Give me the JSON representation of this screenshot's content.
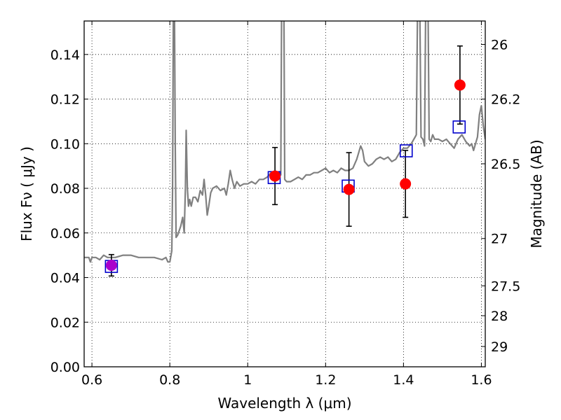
{
  "chart_data": {
    "type": "scatter",
    "xlabel": "Wavelength  λ (μm)",
    "ylabel": "Flux  Fν ( μJy )",
    "ylabel_right": "Magnitude (AB)",
    "xlim": [
      0.58,
      1.61
    ],
    "ylim": [
      0.0,
      0.155
    ],
    "grid": true,
    "x_ticks": [
      {
        "value": 0.6,
        "label": "0.6"
      },
      {
        "value": 0.8,
        "label": "0.8"
      },
      {
        "value": 1.0,
        "label": "1"
      },
      {
        "value": 1.2,
        "label": "1.2"
      },
      {
        "value": 1.4,
        "label": "1.4"
      },
      {
        "value": 1.6,
        "label": "1.6"
      }
    ],
    "y_ticks": [
      {
        "value": 0.0,
        "label": "0.00"
      },
      {
        "value": 0.02,
        "label": "0.02"
      },
      {
        "value": 0.04,
        "label": "0.04"
      },
      {
        "value": 0.06,
        "label": "0.06"
      },
      {
        "value": 0.08,
        "label": "0.08"
      },
      {
        "value": 0.1,
        "label": "0.10"
      },
      {
        "value": 0.12,
        "label": "0.12"
      },
      {
        "value": 0.14,
        "label": "0.14"
      }
    ],
    "right_ticks": [
      {
        "flux": 0.1445,
        "label": "26"
      },
      {
        "flux": 0.12,
        "label": "26.2"
      },
      {
        "flux": 0.091,
        "label": "26.5"
      },
      {
        "flux": 0.0575,
        "label": "27"
      },
      {
        "flux": 0.0363,
        "label": "27.5"
      },
      {
        "flux": 0.0229,
        "label": "28"
      },
      {
        "flux": 0.0091,
        "label": "29"
      }
    ],
    "colors": {
      "model": "#808080",
      "observed": "#ff0000",
      "synthetic": "#0000cc",
      "first_point": "#aa00cc",
      "errorbar": "#000000"
    },
    "model_spectrum": [
      [
        0.58,
        0.049
      ],
      [
        0.592,
        0.049
      ],
      [
        0.596,
        0.047
      ],
      [
        0.6,
        0.049
      ],
      [
        0.61,
        0.049
      ],
      [
        0.62,
        0.048
      ],
      [
        0.63,
        0.05
      ],
      [
        0.64,
        0.049
      ],
      [
        0.66,
        0.049
      ],
      [
        0.68,
        0.05
      ],
      [
        0.7,
        0.05
      ],
      [
        0.72,
        0.049
      ],
      [
        0.74,
        0.049
      ],
      [
        0.76,
        0.049
      ],
      [
        0.78,
        0.048
      ],
      [
        0.79,
        0.049
      ],
      [
        0.795,
        0.047
      ],
      [
        0.8,
        0.047
      ],
      [
        0.805,
        0.052
      ],
      [
        0.807,
        0.08
      ],
      [
        0.809,
        0.16
      ],
      [
        0.812,
        0.16
      ],
      [
        0.814,
        0.1
      ],
      [
        0.816,
        0.058
      ],
      [
        0.82,
        0.059
      ],
      [
        0.828,
        0.063
      ],
      [
        0.833,
        0.067
      ],
      [
        0.837,
        0.06
      ],
      [
        0.84,
        0.08
      ],
      [
        0.842,
        0.106
      ],
      [
        0.845,
        0.08
      ],
      [
        0.848,
        0.072
      ],
      [
        0.851,
        0.075
      ],
      [
        0.855,
        0.072
      ],
      [
        0.86,
        0.076
      ],
      [
        0.866,
        0.076
      ],
      [
        0.872,
        0.074
      ],
      [
        0.878,
        0.079
      ],
      [
        0.884,
        0.077
      ],
      [
        0.888,
        0.084
      ],
      [
        0.892,
        0.077
      ],
      [
        0.896,
        0.068
      ],
      [
        0.9,
        0.072
      ],
      [
        0.905,
        0.078
      ],
      [
        0.91,
        0.08
      ],
      [
        0.92,
        0.081
      ],
      [
        0.93,
        0.079
      ],
      [
        0.94,
        0.08
      ],
      [
        0.945,
        0.077
      ],
      [
        0.95,
        0.082
      ],
      [
        0.955,
        0.088
      ],
      [
        0.96,
        0.084
      ],
      [
        0.966,
        0.08
      ],
      [
        0.972,
        0.083
      ],
      [
        0.98,
        0.081
      ],
      [
        0.99,
        0.082
      ],
      [
        1.0,
        0.082
      ],
      [
        1.01,
        0.083
      ],
      [
        1.02,
        0.082
      ],
      [
        1.03,
        0.084
      ],
      [
        1.04,
        0.084
      ],
      [
        1.05,
        0.085
      ],
      [
        1.06,
        0.087
      ],
      [
        1.07,
        0.086
      ],
      [
        1.08,
        0.087
      ],
      [
        1.085,
        0.086
      ],
      [
        1.087,
        0.16
      ],
      [
        1.093,
        0.16
      ],
      [
        1.095,
        0.084
      ],
      [
        1.1,
        0.083
      ],
      [
        1.11,
        0.083
      ],
      [
        1.12,
        0.084
      ],
      [
        1.13,
        0.085
      ],
      [
        1.14,
        0.084
      ],
      [
        1.15,
        0.086
      ],
      [
        1.16,
        0.086
      ],
      [
        1.17,
        0.087
      ],
      [
        1.18,
        0.087
      ],
      [
        1.19,
        0.088
      ],
      [
        1.2,
        0.089
      ],
      [
        1.21,
        0.087
      ],
      [
        1.22,
        0.088
      ],
      [
        1.23,
        0.087
      ],
      [
        1.24,
        0.089
      ],
      [
        1.25,
        0.088
      ],
      [
        1.26,
        0.088
      ],
      [
        1.27,
        0.089
      ],
      [
        1.28,
        0.093
      ],
      [
        1.29,
        0.099
      ],
      [
        1.295,
        0.097
      ],
      [
        1.3,
        0.092
      ],
      [
        1.31,
        0.09
      ],
      [
        1.32,
        0.091
      ],
      [
        1.33,
        0.093
      ],
      [
        1.34,
        0.094
      ],
      [
        1.35,
        0.093
      ],
      [
        1.36,
        0.094
      ],
      [
        1.37,
        0.092
      ],
      [
        1.38,
        0.093
      ],
      [
        1.39,
        0.096
      ],
      [
        1.4,
        0.098
      ],
      [
        1.41,
        0.098
      ],
      [
        1.42,
        0.1
      ],
      [
        1.43,
        0.103
      ],
      [
        1.433,
        0.104
      ],
      [
        1.436,
        0.16
      ],
      [
        1.442,
        0.16
      ],
      [
        1.445,
        0.103
      ],
      [
        1.45,
        0.102
      ],
      [
        1.454,
        0.099
      ],
      [
        1.457,
        0.16
      ],
      [
        1.463,
        0.16
      ],
      [
        1.466,
        0.102
      ],
      [
        1.47,
        0.101
      ],
      [
        1.475,
        0.104
      ],
      [
        1.48,
        0.102
      ],
      [
        1.49,
        0.102
      ],
      [
        1.5,
        0.101
      ],
      [
        1.51,
        0.102
      ],
      [
        1.52,
        0.1
      ],
      [
        1.53,
        0.098
      ],
      [
        1.54,
        0.102
      ],
      [
        1.55,
        0.104
      ],
      [
        1.56,
        0.101
      ],
      [
        1.57,
        0.099
      ],
      [
        1.575,
        0.1
      ],
      [
        1.58,
        0.097
      ],
      [
        1.59,
        0.103
      ],
      [
        1.595,
        0.113
      ],
      [
        1.6,
        0.117
      ],
      [
        1.605,
        0.108
      ],
      [
        1.61,
        0.102
      ]
    ],
    "observed": [
      {
        "x": 0.65,
        "y": 0.0455,
        "err": 0.0048
      },
      {
        "x": 1.07,
        "y": 0.0855,
        "err": 0.0128
      },
      {
        "x": 1.26,
        "y": 0.0795,
        "err": 0.0165
      },
      {
        "x": 1.405,
        "y": 0.082,
        "err": 0.015
      },
      {
        "x": 1.545,
        "y": 0.1263,
        "err": 0.0175
      }
    ],
    "synthetic": [
      {
        "x": 0.65,
        "y": 0.045
      },
      {
        "x": 1.068,
        "y": 0.0848
      },
      {
        "x": 1.258,
        "y": 0.081
      },
      {
        "x": 1.407,
        "y": 0.0968
      },
      {
        "x": 1.543,
        "y": 0.1075
      }
    ]
  }
}
